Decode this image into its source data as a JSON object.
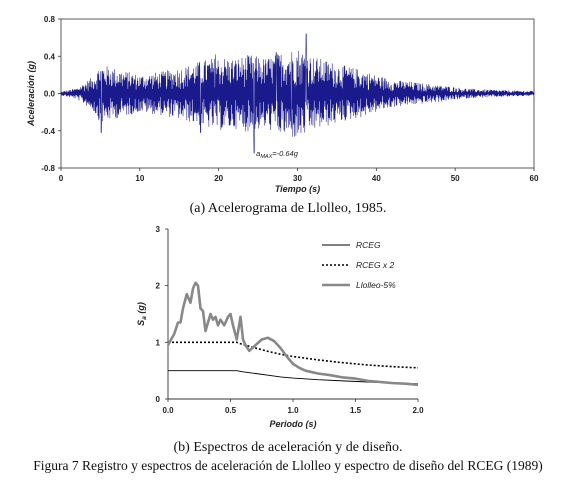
{
  "chart_data": [
    {
      "type": "line",
      "id": "accelerogram",
      "xlabel": "Tiempo (s)",
      "ylabel": "Aceleración (g)",
      "xlim": [
        0,
        60
      ],
      "ylim": [
        -0.8,
        0.8
      ],
      "xticks": [
        "0",
        "10",
        "20",
        "30",
        "40",
        "50",
        "60"
      ],
      "yticks": [
        "0.8",
        "0.4",
        "0.0",
        "-0.4",
        "-0.8"
      ],
      "annotation": {
        "sub": "MAX",
        "text": "=-0.64g",
        "x": 24.5,
        "y": -0.64
      },
      "series": [
        {
          "color": "#1a1a8c",
          "envelope": {
            "t": [
              0,
              2,
              4,
              5,
              7,
              10,
              13,
              16,
              18,
              20,
              22,
              24,
              26,
              28,
              30,
              32,
              34,
              36,
              38,
              40,
              42,
              44,
              46,
              48,
              50,
              52,
              55,
              58,
              60
            ],
            "amp": [
              0.02,
              0.06,
              0.18,
              0.32,
              0.27,
              0.2,
              0.24,
              0.3,
              0.36,
              0.4,
              0.38,
              0.42,
              0.38,
              0.45,
              0.5,
              0.4,
              0.35,
              0.3,
              0.26,
              0.2,
              0.15,
              0.13,
              0.11,
              0.09,
              0.07,
              0.05,
              0.04,
              0.03,
              0.03
            ]
          },
          "peaks": [
            {
              "t": 24.5,
              "a": -0.64
            },
            {
              "t": 31.1,
              "a": 0.64
            },
            {
              "t": 19.6,
              "a": 0.42
            },
            {
              "t": 27.3,
              "a": 0.44
            },
            {
              "t": 5.1,
              "a": -0.42
            },
            {
              "t": 17.7,
              "a": -0.42
            },
            {
              "t": 29.2,
              "a": -0.38
            }
          ]
        }
      ]
    },
    {
      "type": "line",
      "id": "spectra",
      "xlabel": "Periodo (s)",
      "ylabel": "S",
      "ylabel_sub": "a",
      "ylabel_unit": " (g)",
      "xlim": [
        0,
        2.0
      ],
      "ylim": [
        0,
        3
      ],
      "xticks": [
        "0.0",
        "0.5",
        "1.0",
        "1.5",
        "2.0"
      ],
      "yticks": [
        "0",
        "1",
        "2",
        "3"
      ],
      "series": [
        {
          "name": "RCEG",
          "color": "#000000",
          "style": "solid",
          "x": [
            0,
            0.25,
            0.5,
            0.55,
            0.6,
            0.7,
            0.8,
            0.9,
            1.0,
            1.2,
            1.4,
            1.6,
            1.8,
            2.0
          ],
          "y": [
            0.5,
            0.5,
            0.5,
            0.5,
            0.48,
            0.45,
            0.42,
            0.39,
            0.37,
            0.34,
            0.32,
            0.3,
            0.28,
            0.27
          ]
        },
        {
          "name": "RCEG x 2",
          "color": "#000000",
          "style": "dotted",
          "x": [
            0,
            0.25,
            0.5,
            0.55,
            0.6,
            0.7,
            0.8,
            0.9,
            1.0,
            1.2,
            1.4,
            1.6,
            1.8,
            2.0
          ],
          "y": [
            1.0,
            1.0,
            1.0,
            1.0,
            0.96,
            0.9,
            0.84,
            0.79,
            0.75,
            0.69,
            0.64,
            0.6,
            0.57,
            0.55
          ]
        },
        {
          "name": "Llolleo-5%",
          "color": "#888888",
          "style": "thick",
          "x": [
            0,
            0.05,
            0.08,
            0.1,
            0.12,
            0.15,
            0.18,
            0.2,
            0.22,
            0.24,
            0.26,
            0.28,
            0.3,
            0.32,
            0.34,
            0.36,
            0.38,
            0.4,
            0.42,
            0.45,
            0.48,
            0.5,
            0.52,
            0.55,
            0.58,
            0.6,
            0.62,
            0.65,
            0.7,
            0.75,
            0.8,
            0.85,
            0.9,
            0.95,
            1.0,
            1.05,
            1.1,
            1.2,
            1.3,
            1.4,
            1.5,
            1.6,
            1.7,
            1.8,
            1.9,
            2.0
          ],
          "y": [
            0.95,
            1.15,
            1.35,
            1.35,
            1.6,
            1.85,
            1.7,
            1.95,
            2.05,
            2.0,
            1.6,
            1.55,
            1.2,
            1.35,
            1.5,
            1.4,
            1.45,
            1.3,
            1.4,
            1.3,
            1.45,
            1.5,
            1.3,
            1.05,
            1.45,
            1.05,
            0.95,
            0.85,
            0.95,
            1.05,
            1.08,
            1.02,
            0.9,
            0.75,
            0.62,
            0.55,
            0.5,
            0.45,
            0.42,
            0.38,
            0.36,
            0.32,
            0.3,
            0.28,
            0.27,
            0.25
          ]
        }
      ]
    }
  ],
  "captions": {
    "a": "(a) Acelerograma de Llolleo, 1985.",
    "b": "(b) Espectros de aceleración y de diseño.",
    "figure": "Figura 7 Registro y espectros de aceleración de Llolleo y espectro de diseño del RCEG (1989)"
  }
}
